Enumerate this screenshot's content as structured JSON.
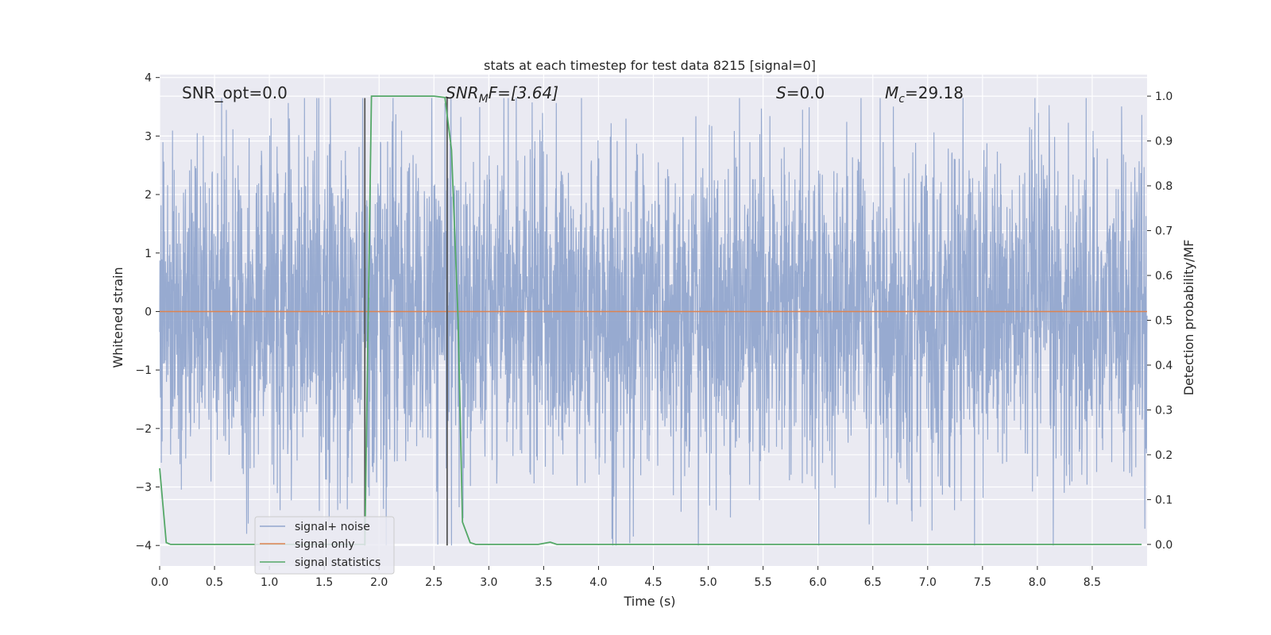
{
  "chart_data": {
    "type": "line",
    "title": "stats at each timestep for test data 8215 [signal=0]",
    "xlabel": "Time (s)",
    "ylabel_left": "Whitened strain",
    "ylabel_right": "Detection probability/MF",
    "xlim": [
      0,
      9.0
    ],
    "ylim_left": [
      -4.35,
      4.05
    ],
    "ylim_right": [
      -0.048,
      1.048
    ],
    "x_ticks": [
      "0.0",
      "0.5",
      "1.0",
      "1.5",
      "2.0",
      "2.5",
      "3.0",
      "3.5",
      "4.0",
      "4.5",
      "5.0",
      "5.5",
      "6.0",
      "6.5",
      "7.0",
      "7.5",
      "8.0",
      "8.5"
    ],
    "y_left_ticks": [
      "4",
      "3",
      "2",
      "1",
      "0",
      "−1",
      "−2",
      "−3",
      "−4"
    ],
    "y_right_ticks": [
      "1.0",
      "0.9",
      "0.8",
      "0.7",
      "0.6",
      "0.5",
      "0.4",
      "0.3",
      "0.2",
      "0.1",
      "0.0"
    ],
    "grid": true,
    "legend_position": "lower-left",
    "annotations": {
      "snr_opt": "SNR_opt=0.0",
      "snr_mf_main": "SNR",
      "snr_mf_sub": "M",
      "snr_mf_rest": "F=[3.64]",
      "s_var": "S",
      "s_rest": "=0.0",
      "mc_var": "M",
      "mc_sub": "c",
      "mc_rest": "=29.18"
    },
    "series": [
      {
        "name": "signal+ noise",
        "color": "#92a6ce",
        "kind": "noise",
        "sample_rate_hz": 400,
        "typical_abs_amplitude": 1.4,
        "max": 3.65,
        "min": -4.0
      },
      {
        "name": "signal only",
        "color": "#dd8452",
        "x": [
          0.0,
          9.0
        ],
        "y": [
          0.0,
          0.0
        ]
      },
      {
        "name": "signal statistics",
        "color": "#55a868",
        "axis": "right",
        "x": [
          0.0,
          0.06,
          0.1,
          0.5,
          1.0,
          1.5,
          1.85,
          1.87,
          1.93,
          2.0,
          2.5,
          2.6,
          2.66,
          2.72,
          2.76,
          2.83,
          2.88,
          3.0,
          3.45,
          3.56,
          3.62,
          3.7,
          4.0,
          5.0,
          6.0,
          7.0,
          8.0,
          8.95
        ],
        "y": [
          0.17,
          0.004,
          0.0,
          0.0,
          0.0,
          0.0,
          0.0,
          0.0,
          1.0,
          1.0,
          1.0,
          0.997,
          0.88,
          0.5,
          0.05,
          0.004,
          0.0,
          0.0,
          0.0,
          0.005,
          0.0,
          0.0,
          0.0,
          0.0,
          0.0,
          0.0,
          0.0,
          0.0
        ]
      }
    ],
    "vertical_lines": {
      "color": "#555555",
      "x": [
        1.87,
        2.62
      ],
      "y_top": 3.65,
      "y_bottom": -4.0
    }
  }
}
